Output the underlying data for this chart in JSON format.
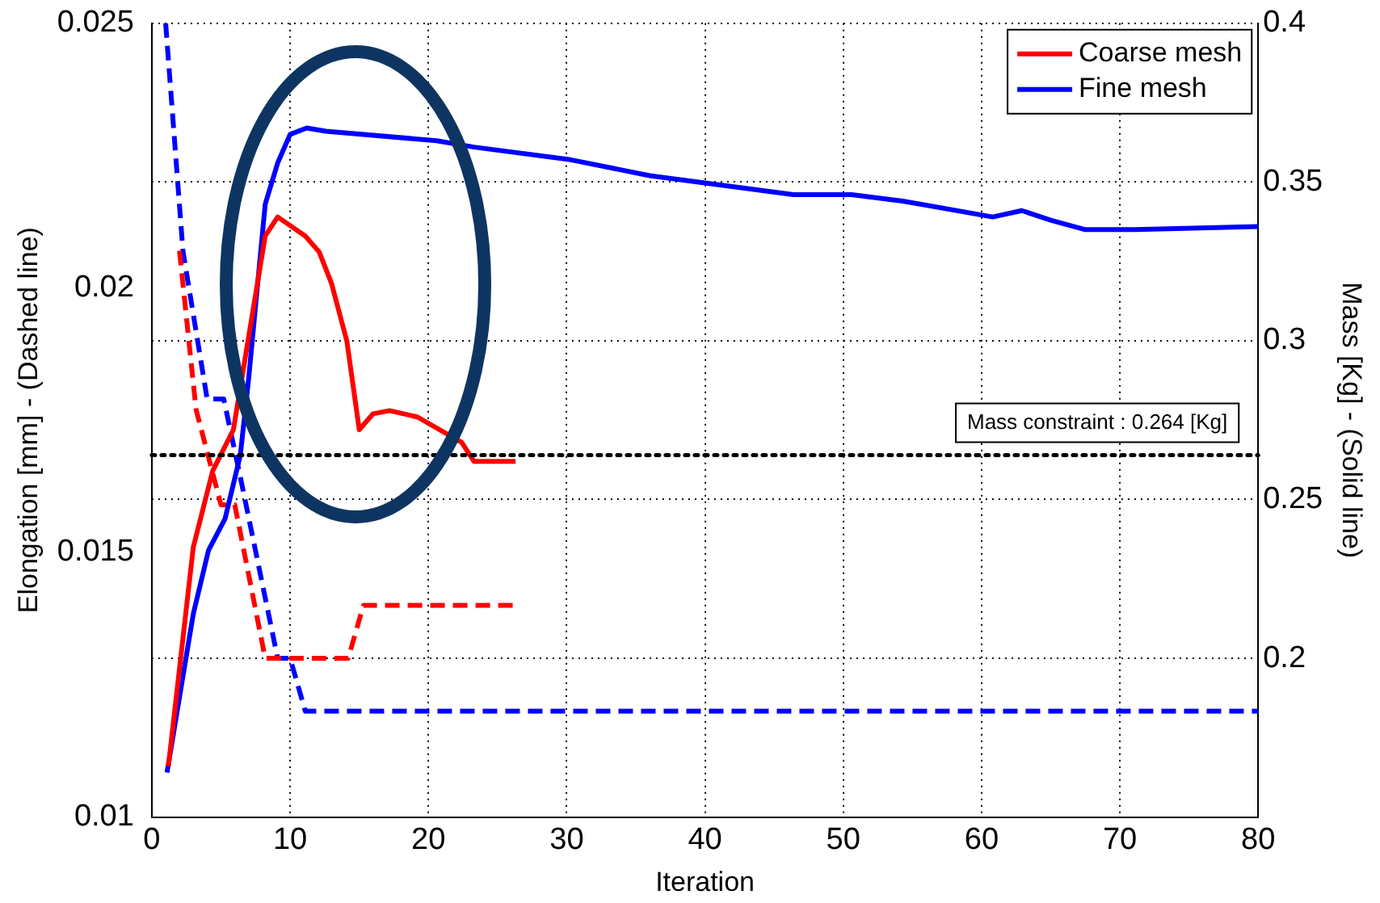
{
  "chart_data": {
    "type": "line",
    "xlabel": "Iteration",
    "ylabel": "Elongation [mm] - (Dashed line)",
    "y2label": "Mass [Kg] - (Solid line)",
    "xlim": [
      0,
      80
    ],
    "xticks": [
      0,
      10,
      20,
      30,
      40,
      50,
      60,
      70,
      80
    ],
    "ylim": [
      0.01,
      0.025
    ],
    "yticks": [
      0.01,
      0.015,
      0.02,
      0.025
    ],
    "y2lim": [
      0.15,
      0.4
    ],
    "y2ticks": [
      0.2,
      0.25,
      0.3,
      0.35,
      0.4
    ],
    "grid": true,
    "legend": "top right",
    "marker": "none",
    "series": [
      {
        "name": "Coarse mesh",
        "color": "#ff0000",
        "axis": "y2",
        "line_style": "solid",
        "x": [
          1.2,
          3,
          4.4,
          5.9,
          8.2,
          9.1,
          11.1,
          12.1,
          13,
          14.1,
          15,
          16,
          17.2,
          19.2,
          21.2,
          22.4,
          23.3,
          26.3
        ],
        "values": [
          0.166,
          0.235,
          0.259,
          0.272,
          0.333,
          0.339,
          0.333,
          0.328,
          0.318,
          0.3,
          0.272,
          0.277,
          0.278,
          0.276,
          0.271,
          0.268,
          0.262,
          0.262
        ]
      },
      {
        "name": "Fine mesh",
        "color": "#0000ff",
        "axis": "y2",
        "line_style": "solid",
        "x": [
          1.1,
          3,
          4.1,
          5.3,
          6.4,
          7,
          8.2,
          9.1,
          10,
          11.2,
          12.6,
          20.6,
          23.3,
          30.3,
          36,
          46.4,
          50.6,
          54.3,
          60.8,
          62.9,
          65,
          67.5,
          71.1,
          80
        ],
        "values": [
          0.164,
          0.214,
          0.234,
          0.244,
          0.264,
          0.288,
          0.343,
          0.356,
          0.365,
          0.367,
          0.366,
          0.363,
          0.361,
          0.357,
          0.352,
          0.346,
          0.346,
          0.344,
          0.339,
          0.341,
          0.338,
          0.335,
          0.335,
          0.336
        ]
      },
      {
        "color": "#ff0000",
        "axis": "y",
        "line_style": "dashed",
        "x": [
          2,
          3.2,
          5,
          6,
          8.2,
          14.2,
          15.3,
          26.3
        ],
        "values": [
          0.0207,
          0.0177,
          0.0159,
          0.0159,
          0.013,
          0.013,
          0.014,
          0.014
        ]
      },
      {
        "color": "#0000ff",
        "axis": "y",
        "line_style": "dashed",
        "x": [
          1,
          2.25,
          4,
          5.2,
          6.5,
          9.1,
          10,
          11.1,
          80
        ],
        "values": [
          0.025,
          0.0207,
          0.0179,
          0.0179,
          0.0163,
          0.013,
          0.013,
          0.012,
          0.012
        ]
      }
    ],
    "ref_lines": [
      {
        "axis": "y2",
        "value": 0.264,
        "label": "Mass constraint : 0.264 [Kg]",
        "color": "#000000",
        "line_style": "dotted"
      }
    ]
  }
}
